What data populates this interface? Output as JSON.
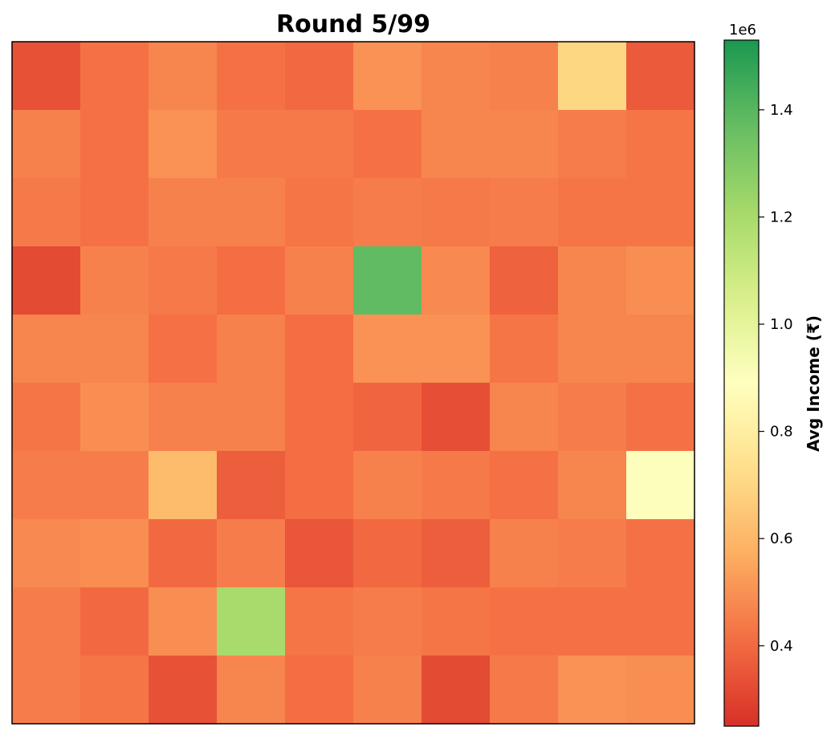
{
  "chart_data": {
    "type": "heatmap",
    "title": "Round 5/99",
    "rows": 10,
    "cols": 10,
    "values": [
      [
        340000,
        420000,
        470000,
        420000,
        400000,
        500000,
        470000,
        460000,
        700000,
        360000
      ],
      [
        460000,
        420000,
        500000,
        440000,
        440000,
        420000,
        470000,
        470000,
        450000,
        430000
      ],
      [
        440000,
        420000,
        460000,
        460000,
        430000,
        450000,
        440000,
        450000,
        430000,
        430000
      ],
      [
        320000,
        460000,
        440000,
        410000,
        460000,
        1380000,
        480000,
        380000,
        470000,
        490000
      ],
      [
        470000,
        470000,
        420000,
        460000,
        410000,
        500000,
        500000,
        430000,
        470000,
        470000
      ],
      [
        430000,
        490000,
        460000,
        460000,
        410000,
        390000,
        330000,
        470000,
        450000,
        420000
      ],
      [
        450000,
        450000,
        610000,
        370000,
        410000,
        460000,
        440000,
        420000,
        470000,
        900000
      ],
      [
        480000,
        490000,
        400000,
        450000,
        350000,
        400000,
        370000,
        460000,
        450000,
        420000
      ],
      [
        450000,
        400000,
        490000,
        1200000,
        430000,
        450000,
        430000,
        420000,
        420000,
        420000
      ],
      [
        450000,
        430000,
        340000,
        470000,
        410000,
        460000,
        320000,
        440000,
        500000,
        490000
      ]
    ],
    "colormap": "RdYlGn",
    "colorbar": {
      "label": "Avg Income (₹)",
      "min": 250000,
      "max": 1530000,
      "ticks": [
        0.4,
        0.6,
        0.8,
        1.0,
        1.2,
        1.4
      ],
      "tick_labels": [
        "0.4",
        "0.6",
        "0.8",
        "1.0",
        "1.2",
        "1.4"
      ],
      "offset_text": "1e6",
      "scale": 1000000
    },
    "colors": {
      "low": "#d73027",
      "mid": "#ffffbf",
      "high": "#1a9850"
    },
    "grid": false,
    "axis_ticks": false
  }
}
